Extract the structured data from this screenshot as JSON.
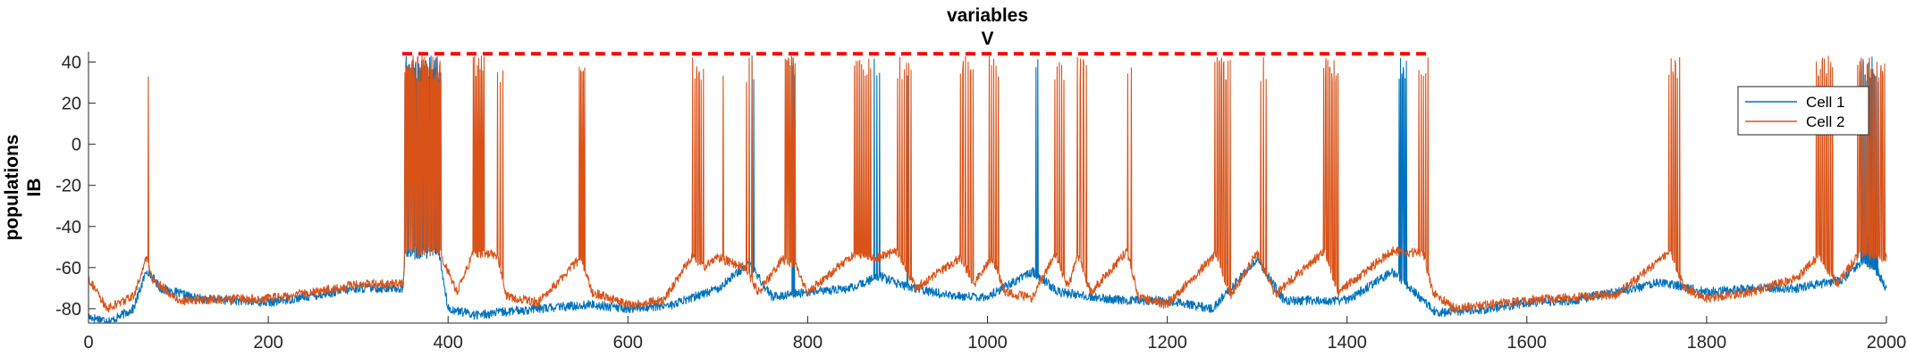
{
  "chart_data": {
    "type": "line",
    "title": [
      "variables",
      "V"
    ],
    "ylabel": [
      "populations",
      "IB"
    ],
    "xlabel": "",
    "xlim": [
      0,
      2000
    ],
    "ylim": [
      -87,
      45
    ],
    "xticks": [
      0,
      200,
      400,
      600,
      800,
      1000,
      1200,
      1400,
      1600,
      1800,
      2000
    ],
    "yticks": [
      -80,
      -60,
      -40,
      -20,
      0,
      20,
      40
    ],
    "grid": false,
    "legend_position": "top-right",
    "series": [
      {
        "name": "Cell 1",
        "color": "#0072BD",
        "baseline": [
          [
            0,
            -84
          ],
          [
            25,
            -86
          ],
          [
            50,
            -80
          ],
          [
            65,
            -61
          ],
          [
            80,
            -70
          ],
          [
            120,
            -75
          ],
          [
            200,
            -77
          ],
          [
            260,
            -73
          ],
          [
            300,
            -70
          ],
          [
            350,
            -70
          ],
          [
            352,
            -54
          ],
          [
            390,
            -53
          ],
          [
            400,
            -80
          ],
          [
            430,
            -83
          ],
          [
            500,
            -80
          ],
          [
            560,
            -78
          ],
          [
            600,
            -80
          ],
          [
            650,
            -78
          ],
          [
            700,
            -70
          ],
          [
            735,
            -58
          ],
          [
            760,
            -74
          ],
          [
            800,
            -72
          ],
          [
            850,
            -70
          ],
          [
            880,
            -64
          ],
          [
            900,
            -68
          ],
          [
            960,
            -74
          ],
          [
            1000,
            -74
          ],
          [
            1050,
            -62
          ],
          [
            1080,
            -72
          ],
          [
            1150,
            -76
          ],
          [
            1200,
            -76
          ],
          [
            1250,
            -80
          ],
          [
            1300,
            -56
          ],
          [
            1330,
            -76
          ],
          [
            1400,
            -76
          ],
          [
            1450,
            -62
          ],
          [
            1470,
            -70
          ],
          [
            1500,
            -82
          ],
          [
            1560,
            -80
          ],
          [
            1600,
            -77
          ],
          [
            1650,
            -76
          ],
          [
            1700,
            -72
          ],
          [
            1750,
            -67
          ],
          [
            1800,
            -72
          ],
          [
            1850,
            -70
          ],
          [
            1900,
            -70
          ],
          [
            1950,
            -66
          ],
          [
            1975,
            -57
          ],
          [
            1990,
            -62
          ],
          [
            2000,
            -70
          ]
        ],
        "spikes": [
          {
            "range": [
              352,
              390
            ],
            "count": 30
          },
          {
            "range": [
              738,
              740
            ],
            "count": 2
          },
          {
            "range": [
              783,
              785
            ],
            "count": 2
          },
          {
            "range": [
              874,
              880
            ],
            "count": 3
          },
          {
            "range": [
              910,
              912
            ],
            "count": 1
          },
          {
            "range": [
              1054,
              1056
            ],
            "count": 2
          },
          {
            "range": [
              1458,
              1466
            ],
            "count": 6
          },
          {
            "range": [
              1972,
              1990
            ],
            "count": 10
          }
        ]
      },
      {
        "name": "Cell 2",
        "color": "#D95319",
        "baseline": [
          [
            0,
            -65
          ],
          [
            20,
            -80
          ],
          [
            50,
            -74
          ],
          [
            65,
            -55
          ],
          [
            70,
            -65
          ],
          [
            100,
            -76
          ],
          [
            200,
            -75
          ],
          [
            250,
            -72
          ],
          [
            300,
            -68
          ],
          [
            350,
            -68
          ],
          [
            352,
            -52
          ],
          [
            390,
            -52
          ],
          [
            400,
            -62
          ],
          [
            410,
            -72
          ],
          [
            428,
            -53
          ],
          [
            440,
            -53
          ],
          [
            455,
            -54
          ],
          [
            465,
            -74
          ],
          [
            500,
            -77
          ],
          [
            548,
            -55
          ],
          [
            560,
            -72
          ],
          [
            600,
            -78
          ],
          [
            640,
            -76
          ],
          [
            672,
            -54
          ],
          [
            684,
            -60
          ],
          [
            700,
            -55
          ],
          [
            730,
            -60
          ],
          [
            745,
            -72
          ],
          [
            772,
            -56
          ],
          [
            785,
            -58
          ],
          [
            800,
            -72
          ],
          [
            852,
            -53
          ],
          [
            872,
            -56
          ],
          [
            900,
            -52
          ],
          [
            920,
            -70
          ],
          [
            970,
            -55
          ],
          [
            985,
            -68
          ],
          [
            1005,
            -55
          ],
          [
            1020,
            -72
          ],
          [
            1050,
            -75
          ],
          [
            1075,
            -53
          ],
          [
            1090,
            -70
          ],
          [
            1100,
            -54
          ],
          [
            1115,
            -72
          ],
          [
            1155,
            -52
          ],
          [
            1168,
            -74
          ],
          [
            1200,
            -78
          ],
          [
            1255,
            -53
          ],
          [
            1270,
            -74
          ],
          [
            1300,
            -53
          ],
          [
            1320,
            -73
          ],
          [
            1375,
            -52
          ],
          [
            1390,
            -72
          ],
          [
            1450,
            -52
          ],
          [
            1485,
            -53
          ],
          [
            1495,
            -72
          ],
          [
            1520,
            -80
          ],
          [
            1600,
            -76
          ],
          [
            1700,
            -73
          ],
          [
            1760,
            -52
          ],
          [
            1775,
            -70
          ],
          [
            1800,
            -75
          ],
          [
            1850,
            -72
          ],
          [
            1900,
            -65
          ],
          [
            1925,
            -54
          ],
          [
            1945,
            -68
          ],
          [
            1970,
            -53
          ],
          [
            1990,
            -55
          ],
          [
            2000,
            -55
          ]
        ],
        "spikes": [
          {
            "range": [
              66,
              67
            ],
            "count": 1
          },
          {
            "range": [
              352,
              392
            ],
            "count": 32
          },
          {
            "range": [
              428,
              440
            ],
            "count": 9
          },
          {
            "range": [
              455,
              461
            ],
            "count": 3
          },
          {
            "range": [
              546,
              552
            ],
            "count": 5
          },
          {
            "range": [
              672,
              684
            ],
            "count": 6
          },
          {
            "range": [
              705,
              707
            ],
            "count": 1
          },
          {
            "range": [
              732,
              738
            ],
            "count": 3
          },
          {
            "range": [
              775,
              786
            ],
            "count": 7
          },
          {
            "range": [
              852,
              870
            ],
            "count": 10
          },
          {
            "range": [
              900,
              915
            ],
            "count": 7
          },
          {
            "range": [
              970,
              984
            ],
            "count": 6
          },
          {
            "range": [
              1002,
              1012
            ],
            "count": 5
          },
          {
            "range": [
              1075,
              1085
            ],
            "count": 5
          },
          {
            "range": [
              1100,
              1110
            ],
            "count": 4
          },
          {
            "range": [
              1156,
              1160
            ],
            "count": 2
          },
          {
            "range": [
              1253,
              1270
            ],
            "count": 8
          },
          {
            "range": [
              1304,
              1310
            ],
            "count": 3
          },
          {
            "range": [
              1374,
              1390
            ],
            "count": 8
          },
          {
            "range": [
              1480,
              1490
            ],
            "count": 5
          },
          {
            "range": [
              1758,
              1770
            ],
            "count": 6
          },
          {
            "range": [
              1922,
              1940
            ],
            "count": 9
          },
          {
            "range": [
              1968,
              1998
            ],
            "count": 15
          }
        ]
      }
    ],
    "annotations": [
      {
        "type": "dashed-line",
        "color": "#FF0000",
        "y": 44,
        "x_range": [
          349,
          1490
        ]
      }
    ]
  }
}
